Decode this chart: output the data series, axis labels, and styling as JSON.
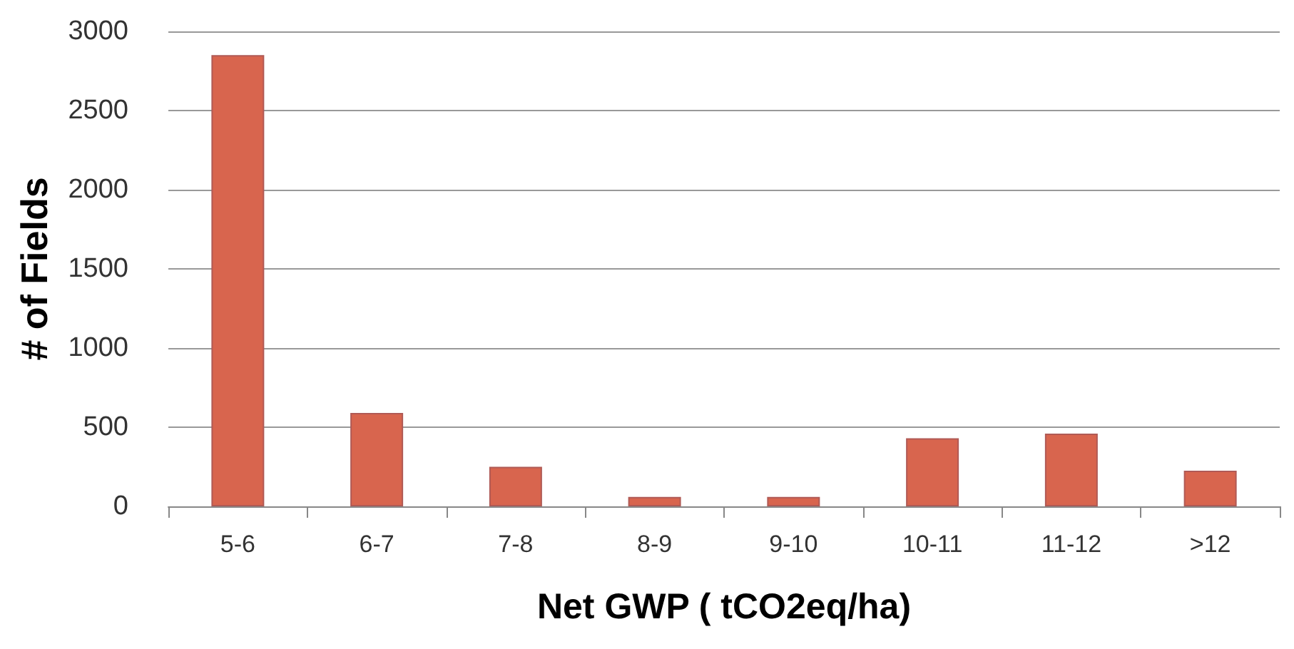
{
  "chart_data": {
    "type": "bar",
    "xlabel": "Net GWP ( tCO2eq/ha)",
    "ylabel": "# of Fields",
    "categories": [
      "5-6",
      "6-7",
      "7-8",
      "8-9",
      "9-10",
      "10-11",
      "11-12",
      ">12"
    ],
    "values": [
      2850,
      590,
      250,
      60,
      60,
      430,
      460,
      225
    ],
    "color": "#d8654e",
    "ylim": [
      0,
      3000
    ],
    "yticks": [
      0,
      500,
      1000,
      1500,
      2000,
      2500,
      3000
    ],
    "grid": "y"
  }
}
